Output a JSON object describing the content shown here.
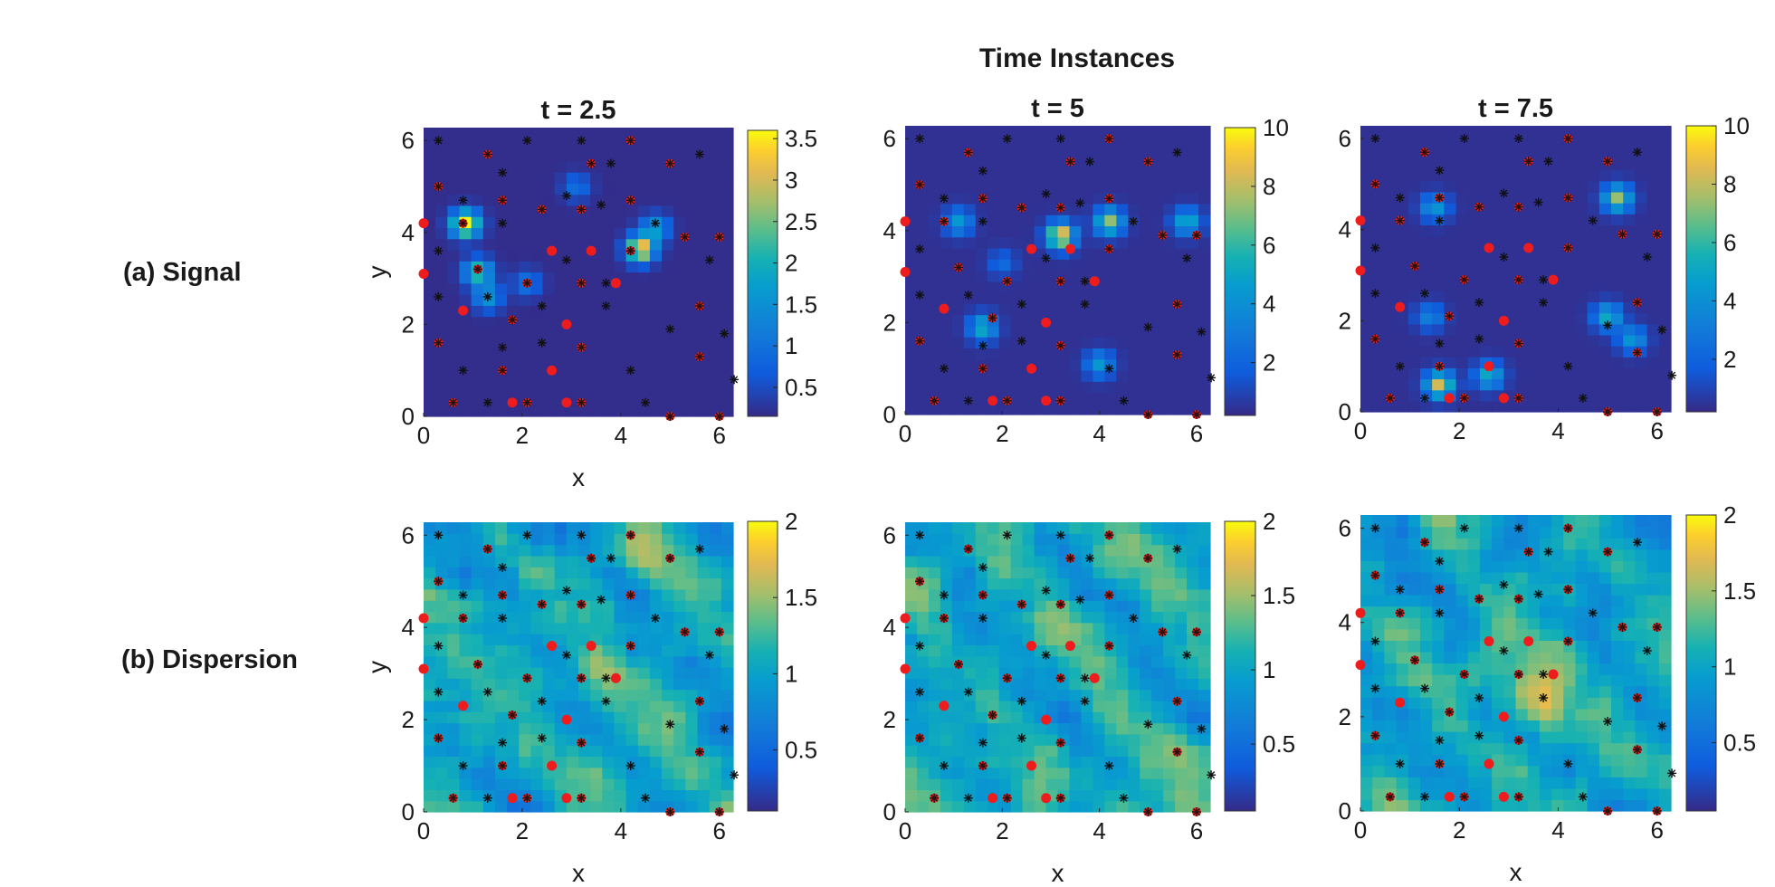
{
  "figure_title": "Time Instances",
  "row_labels": [
    "(a) Signal",
    "(b) Dispersion"
  ],
  "chart_data": [
    {
      "type": "heatmap",
      "row": "(a) Signal",
      "title": "t = 2.5",
      "xlabel": "x",
      "ylabel": "y",
      "xlim": [
        0,
        6.28
      ],
      "ylim": [
        0,
        6.28
      ],
      "xticks": [
        "0",
        "2",
        "4",
        "6"
      ],
      "yticks": [
        "0",
        "2",
        "4",
        "6"
      ],
      "colorbar": {
        "min": 0.15,
        "max": 3.6,
        "ticks": [
          "0.5",
          "1",
          "1.5",
          "2",
          "2.5",
          "3",
          "3.5"
        ],
        "tick_values": [
          0.5,
          1,
          1.5,
          2,
          2.5,
          3,
          3.5
        ]
      },
      "peaks": [
        [
          0.85,
          4.2,
          3.5
        ],
        [
          4.4,
          3.65,
          3.3
        ],
        [
          1.1,
          3.15,
          2.2
        ],
        [
          1.3,
          2.6,
          1.4
        ],
        [
          2.1,
          2.9,
          0.9
        ],
        [
          3.1,
          5,
          0.8
        ],
        [
          4.7,
          4.1,
          1.5
        ]
      ],
      "background": 0.18,
      "field": "signal",
      "seed": 3
    },
    {
      "type": "heatmap",
      "row": "(a) Signal",
      "title": "t = 5",
      "xlabel": "",
      "ylabel": "",
      "xlim": [
        0,
        6.28
      ],
      "ylim": [
        0,
        6.28
      ],
      "xticks": [
        "0",
        "2",
        "4",
        "6"
      ],
      "yticks": [
        "0",
        "2",
        "4",
        "6"
      ],
      "colorbar": {
        "min": 0.2,
        "max": 10,
        "ticks": [
          "2",
          "4",
          "6",
          "8",
          "10"
        ],
        "tick_values": [
          2,
          4,
          6,
          8,
          10
        ]
      },
      "peaks": [
        [
          3.2,
          3.9,
          9
        ],
        [
          4.2,
          4.2,
          7
        ],
        [
          5.8,
          4.2,
          5
        ],
        [
          1.1,
          4.2,
          4
        ],
        [
          1.6,
          1.9,
          5
        ],
        [
          4,
          1.1,
          4
        ],
        [
          2,
          3.3,
          2
        ]
      ],
      "background": 0.4,
      "field": "signal",
      "seed": 5
    },
    {
      "type": "heatmap",
      "row": "(a) Signal",
      "title": "t = 7.5",
      "xlabel": "",
      "ylabel": "",
      "xlim": [
        0,
        6.28
      ],
      "ylim": [
        0,
        6.28
      ],
      "xticks": [
        "0",
        "2",
        "4",
        "6"
      ],
      "yticks": [
        "0",
        "2",
        "4",
        "6"
      ],
      "colorbar": {
        "min": 0.2,
        "max": 10,
        "ticks": [
          "2",
          "4",
          "6",
          "8",
          "10"
        ],
        "tick_values": [
          2,
          4,
          6,
          8,
          10
        ]
      },
      "peaks": [
        [
          1.6,
          0.6,
          8
        ],
        [
          2.6,
          0.8,
          5
        ],
        [
          5.2,
          4.7,
          7
        ],
        [
          5,
          2.1,
          5
        ],
        [
          5.5,
          1.6,
          4
        ],
        [
          1.5,
          4.5,
          4
        ],
        [
          1.4,
          2.1,
          3
        ]
      ],
      "background": 0.4,
      "field": "signal",
      "seed": 7
    },
    {
      "type": "heatmap",
      "row": "(b) Dispersion",
      "title": "",
      "xlabel": "x",
      "ylabel": "y",
      "xlim": [
        0,
        6.28
      ],
      "ylim": [
        0,
        6.28
      ],
      "xticks": [
        "0",
        "2",
        "4",
        "6"
      ],
      "yticks": [
        "0",
        "2",
        "4",
        "6"
      ],
      "colorbar": {
        "min": 0.1,
        "max": 2,
        "ticks": [
          "0.5",
          "1",
          "1.5",
          "2"
        ],
        "tick_values": [
          0.5,
          1,
          1.5,
          2
        ]
      },
      "peaks": [
        [
          4.6,
          5.5,
          0.7
        ],
        [
          3.6,
          3,
          0.5
        ]
      ],
      "background": 0.9,
      "field": "dispersion",
      "seed": 11
    },
    {
      "type": "heatmap",
      "row": "(b) Dispersion",
      "title": "",
      "xlabel": "x",
      "ylabel": "",
      "xlim": [
        0,
        6.28
      ],
      "ylim": [
        0,
        6.28
      ],
      "xticks": [
        "0",
        "2",
        "4",
        "6"
      ],
      "yticks": [
        "0",
        "2",
        "4",
        "6"
      ],
      "colorbar": {
        "min": 0.05,
        "max": 2,
        "ticks": [
          "0.5",
          "1",
          "1.5",
          "2"
        ],
        "tick_values": [
          0.5,
          1,
          1.5,
          2
        ]
      },
      "peaks": [
        [
          0.2,
          5.2,
          0.8
        ],
        [
          5.8,
          0.6,
          0.6
        ]
      ],
      "background": 0.9,
      "field": "dispersion",
      "seed": 13
    },
    {
      "type": "heatmap",
      "row": "(b) Dispersion",
      "title": "",
      "xlabel": "x",
      "ylabel": "",
      "xlim": [
        0,
        6.28
      ],
      "ylim": [
        0,
        6.28
      ],
      "xticks": [
        "0",
        "2",
        "4",
        "6"
      ],
      "yticks": [
        "0",
        "2",
        "4",
        "6"
      ],
      "colorbar": {
        "min": 0.05,
        "max": 2,
        "ticks": [
          "0.5",
          "1",
          "1.5",
          "2"
        ],
        "tick_values": [
          0.5,
          1,
          1.5,
          2
        ]
      },
      "peaks": [
        [
          3.4,
          2.7,
          1.1
        ],
        [
          3.7,
          2.1,
          0.9
        ],
        [
          2.8,
          3.5,
          0.6
        ]
      ],
      "background": 0.85,
      "field": "dispersion",
      "seed": 17
    }
  ],
  "sensors_black": [
    [
      0.3,
      6
    ],
    [
      2.1,
      6
    ],
    [
      3.2,
      6
    ],
    [
      5.6,
      5.7
    ],
    [
      3.8,
      5.5
    ],
    [
      1.6,
      5.3
    ],
    [
      0.8,
      4.7
    ],
    [
      1.6,
      4.2
    ],
    [
      2.9,
      4.8
    ],
    [
      3.6,
      4.6
    ],
    [
      4.7,
      4.2
    ],
    [
      0.3,
      3.6
    ],
    [
      2.9,
      3.4
    ],
    [
      5.8,
      3.4
    ],
    [
      0.3,
      2.6
    ],
    [
      1.3,
      2.6
    ],
    [
      2.4,
      2.4
    ],
    [
      3.7,
      2.4
    ],
    [
      2.4,
      1.6
    ],
    [
      5,
      1.9
    ],
    [
      6.1,
      1.8
    ],
    [
      0.8,
      1
    ],
    [
      4.2,
      1
    ],
    [
      6.3,
      0.8
    ],
    [
      1.3,
      0.3
    ],
    [
      4.5,
      0.3
    ],
    [
      3.7,
      2.9
    ],
    [
      1.6,
      1.5
    ]
  ],
  "sensors_red_overlap": [
    [
      0.3,
      5
    ],
    [
      0.8,
      4.2
    ],
    [
      1.3,
      5.7
    ],
    [
      1.6,
      4.7
    ],
    [
      2.4,
      4.5
    ],
    [
      3.2,
      4.5
    ],
    [
      3.4,
      5.5
    ],
    [
      4.2,
      6
    ],
    [
      4.2,
      4.7
    ],
    [
      5,
      5.5
    ],
    [
      5.3,
      3.9
    ],
    [
      6,
      3.9
    ],
    [
      1.1,
      3.2
    ],
    [
      2.1,
      2.9
    ],
    [
      3.2,
      2.9
    ],
    [
      4.2,
      3.6
    ],
    [
      1.8,
      2.1
    ],
    [
      5.6,
      2.4
    ],
    [
      0.3,
      1.6
    ],
    [
      3.2,
      1.5
    ],
    [
      5.6,
      1.3
    ],
    [
      1.6,
      1
    ],
    [
      3.2,
      0.3
    ],
    [
      0.6,
      0.3
    ],
    [
      5,
      0
    ],
    [
      6,
      0
    ],
    [
      2.1,
      0.3
    ]
  ],
  "sensors_red_only": [
    [
      0,
      4.2
    ],
    [
      0,
      3.1
    ],
    [
      0.8,
      2.3
    ],
    [
      2.6,
      3.6
    ],
    [
      3.4,
      3.6
    ],
    [
      3.9,
      2.9
    ],
    [
      2.9,
      2
    ],
    [
      2.6,
      1
    ],
    [
      1.8,
      0.3
    ],
    [
      2.9,
      0.3
    ]
  ]
}
